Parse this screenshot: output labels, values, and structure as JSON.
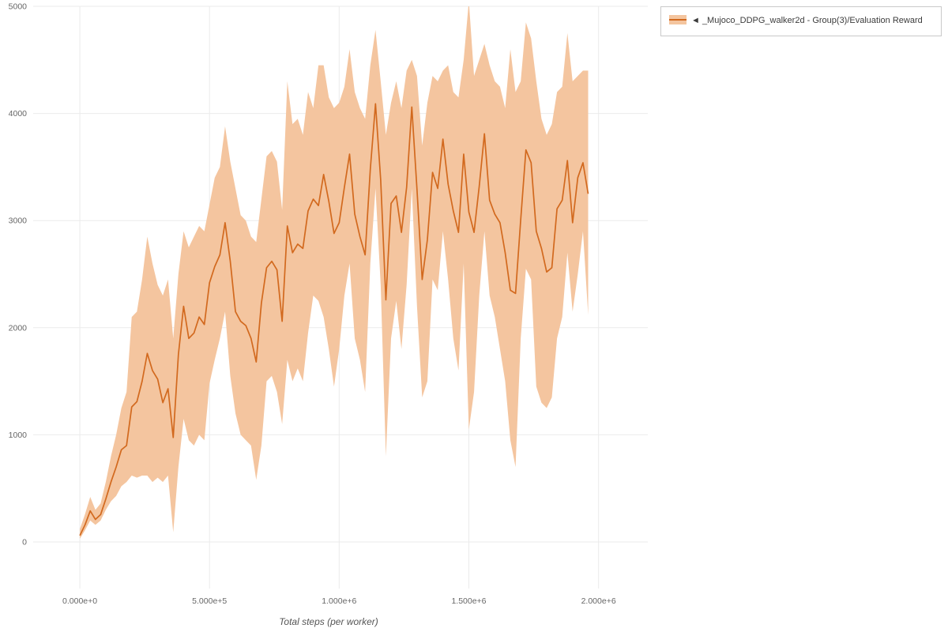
{
  "legend": {
    "label": "◄ _Mujoco_DDPG_walker2d - Group(3)/Evaluation Reward"
  },
  "chart_data": {
    "type": "line",
    "title": "",
    "xlabel": "Total steps (per worker)",
    "ylabel": "",
    "legend_position": "top-right",
    "grid": true,
    "xlim": [
      -180000,
      2190000
    ],
    "ylim": [
      -435,
      5000
    ],
    "xticks": [
      0,
      500000,
      1000000,
      1500000,
      2000000
    ],
    "xtick_labels": [
      "0.000e+0",
      "5.000e+5",
      "1.000e+6",
      "1.500e+6",
      "2.000e+6"
    ],
    "yticks": [
      0,
      1000,
      2000,
      3000,
      4000,
      5000
    ],
    "ytick_labels": [
      "0",
      "1000",
      "2000",
      "3000",
      "4000",
      "5000"
    ],
    "colors": {
      "line": "#d2691e",
      "band": "#f4c59f",
      "grid": "#ebebeb",
      "tick_text": "#666666",
      "axis_label": "#555555"
    },
    "series": [
      {
        "name": "_Mujoco_DDPG_walker2d - Group(3)/Evaluation Reward",
        "x": [
          0,
          20000,
          40000,
          60000,
          80000,
          100000,
          120000,
          140000,
          160000,
          180000,
          200000,
          220000,
          240000,
          260000,
          280000,
          300000,
          320000,
          340000,
          360000,
          380000,
          400000,
          420000,
          440000,
          460000,
          480000,
          500000,
          520000,
          540000,
          560000,
          580000,
          600000,
          620000,
          640000,
          660000,
          680000,
          700000,
          720000,
          740000,
          760000,
          780000,
          800000,
          820000,
          840000,
          860000,
          880000,
          900000,
          920000,
          940000,
          960000,
          980000,
          1000000,
          1020000,
          1040000,
          1060000,
          1080000,
          1100000,
          1120000,
          1140000,
          1160000,
          1180000,
          1200000,
          1220000,
          1240000,
          1260000,
          1280000,
          1300000,
          1320000,
          1340000,
          1360000,
          1380000,
          1400000,
          1420000,
          1440000,
          1460000,
          1480000,
          1500000,
          1520000,
          1540000,
          1560000,
          1580000,
          1600000,
          1620000,
          1640000,
          1660000,
          1680000,
          1700000,
          1720000,
          1740000,
          1760000,
          1780000,
          1800000,
          1820000,
          1840000,
          1860000,
          1880000,
          1900000,
          1920000,
          1940000,
          1960000
        ],
        "mean": [
          60,
          160,
          290,
          210,
          255,
          400,
          560,
          700,
          860,
          900,
          1260,
          1310,
          1500,
          1760,
          1600,
          1520,
          1300,
          1430,
          975,
          1750,
          2200,
          1900,
          1950,
          2100,
          2030,
          2420,
          2570,
          2680,
          2980,
          2620,
          2150,
          2060,
          2020,
          1900,
          1680,
          2230,
          2560,
          2620,
          2540,
          2060,
          2950,
          2700,
          2780,
          2740,
          3090,
          3200,
          3140,
          3430,
          3180,
          2880,
          2980,
          3310,
          3620,
          3060,
          2850,
          2680,
          3480,
          4090,
          3380,
          2260,
          3160,
          3230,
          2890,
          3310,
          4060,
          3290,
          2450,
          2820,
          3450,
          3300,
          3760,
          3340,
          3090,
          2890,
          3620,
          3080,
          2890,
          3320,
          3810,
          3190,
          3060,
          2980,
          2700,
          2350,
          2320,
          3010,
          3660,
          3540,
          2900,
          2740,
          2520,
          2560,
          3110,
          3190,
          3560,
          2980,
          3400,
          3540,
          3250
        ],
        "lower": [
          30,
          110,
          200,
          160,
          200,
          300,
          380,
          430,
          520,
          560,
          620,
          600,
          620,
          620,
          560,
          600,
          560,
          620,
          90,
          700,
          1150,
          950,
          900,
          1000,
          950,
          1480,
          1700,
          1900,
          2150,
          1550,
          1200,
          1000,
          950,
          900,
          580,
          900,
          1500,
          1550,
          1400,
          1100,
          1700,
          1500,
          1620,
          1500,
          1950,
          2300,
          2250,
          2100,
          1800,
          1450,
          1800,
          2300,
          2600,
          1900,
          1700,
          1400,
          2600,
          3300,
          2400,
          800,
          1900,
          2250,
          1800,
          2400,
          3300,
          2200,
          1350,
          1500,
          2450,
          2350,
          2900,
          2450,
          1900,
          1600,
          2600,
          1050,
          1400,
          2300,
          2900,
          2300,
          2100,
          1800,
          1500,
          950,
          700,
          1900,
          2550,
          2450,
          1450,
          1300,
          1250,
          1350,
          1900,
          2100,
          2700,
          2150,
          2500,
          2900,
          2120
        ],
        "upper": [
          120,
          260,
          420,
          300,
          360,
          560,
          800,
          1000,
          1250,
          1400,
          2100,
          2150,
          2450,
          2850,
          2600,
          2400,
          2300,
          2450,
          1900,
          2500,
          2900,
          2750,
          2850,
          2950,
          2900,
          3150,
          3400,
          3500,
          3880,
          3550,
          3300,
          3050,
          3000,
          2850,
          2800,
          3200,
          3600,
          3650,
          3550,
          3100,
          4300,
          3900,
          3950,
          3800,
          4200,
          4050,
          4450,
          4450,
          4150,
          4050,
          4100,
          4250,
          4600,
          4200,
          4050,
          3950,
          4450,
          4780,
          4300,
          3800,
          4100,
          4300,
          4050,
          4400,
          4500,
          4350,
          3700,
          4100,
          4350,
          4300,
          4400,
          4450,
          4200,
          4150,
          4500,
          5050,
          4350,
          4500,
          4650,
          4450,
          4300,
          4250,
          4050,
          4600,
          4200,
          4300,
          4850,
          4700,
          4300,
          3950,
          3800,
          3900,
          4200,
          4250,
          4750,
          4300,
          4350,
          4400,
          4400
        ]
      }
    ]
  }
}
